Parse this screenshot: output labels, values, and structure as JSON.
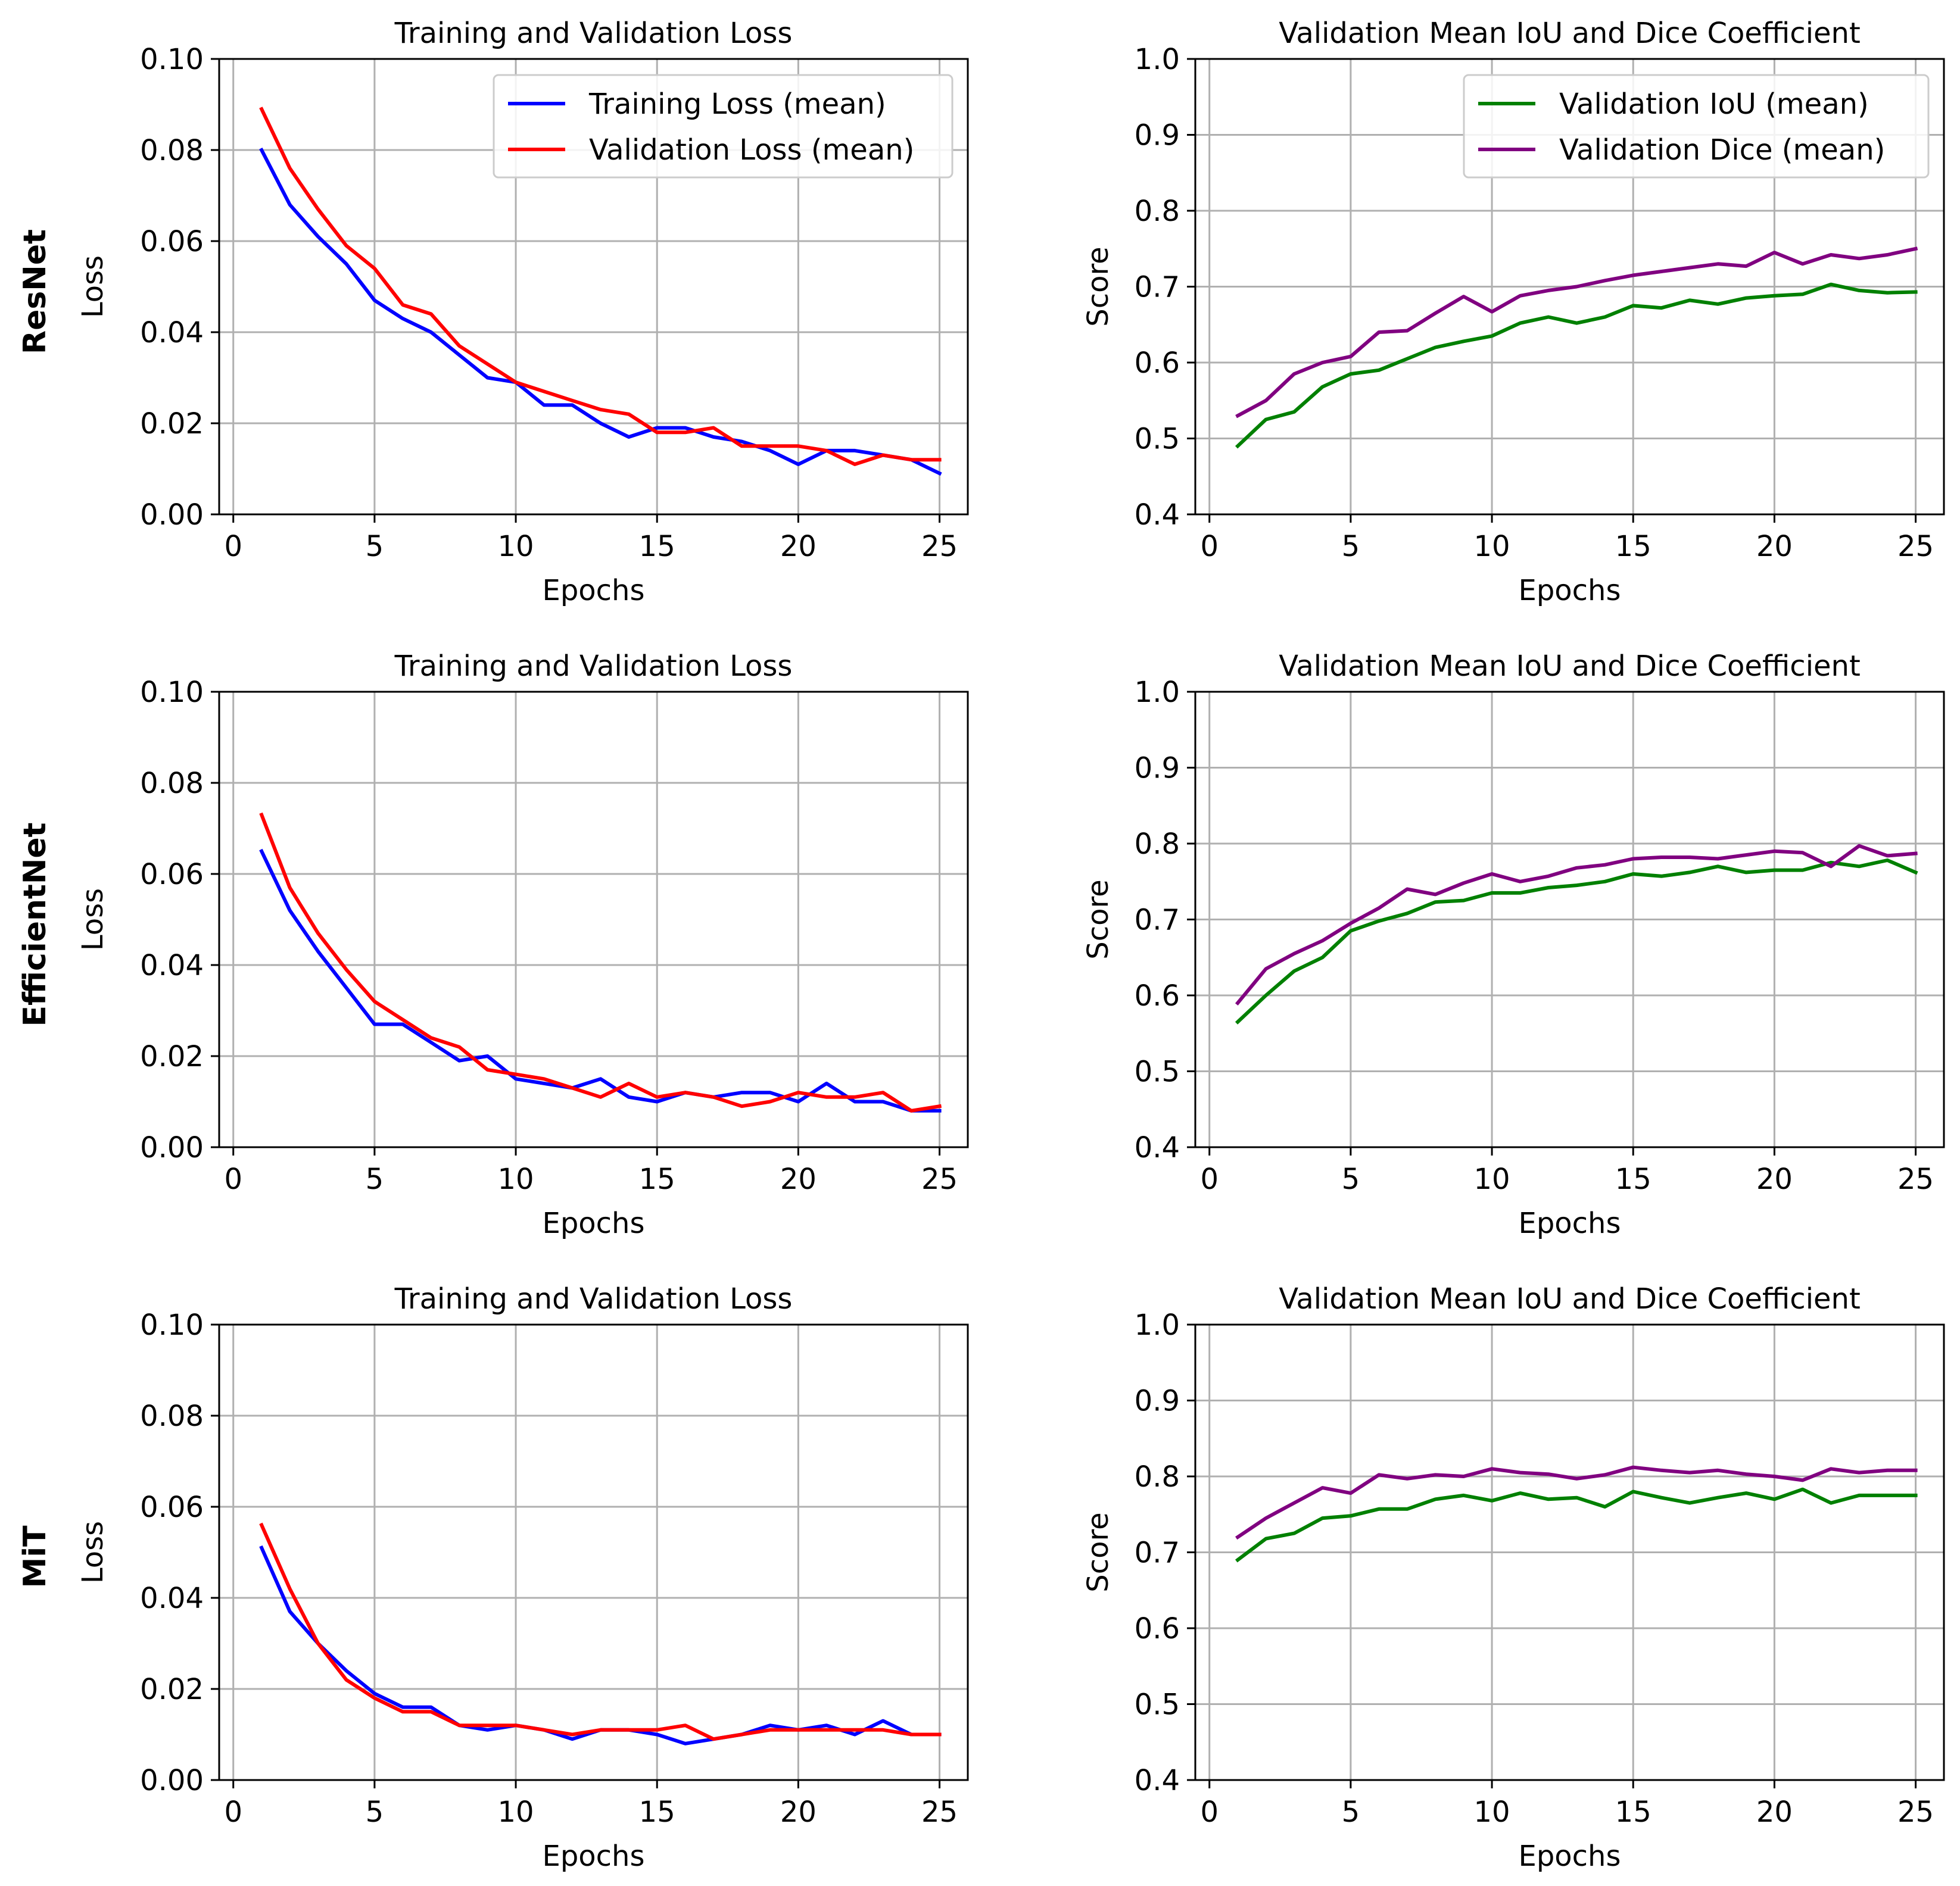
{
  "figure": {
    "row_labels": [
      "ResNet",
      "EfficientNet",
      "MiT"
    ]
  },
  "colors": {
    "train": "#0000ff",
    "val": "#ff0000",
    "iou": "#008000",
    "dice": "#800080",
    "grid": "#b0b0b0"
  },
  "chart_data": [
    {
      "id": "resnet-loss",
      "type": "line",
      "row": "ResNet",
      "title": "Training and Validation Loss",
      "xlabel": "Epochs",
      "ylabel": "Loss",
      "xlim": [
        -0.5,
        26
      ],
      "ylim": [
        0,
        0.1
      ],
      "xticks": [
        0,
        5,
        10,
        15,
        20,
        25
      ],
      "yticks": [
        0.0,
        0.02,
        0.04,
        0.06,
        0.08,
        0.1
      ],
      "ytick_labels": [
        "0.00",
        "0.02",
        "0.04",
        "0.06",
        "0.08",
        "0.10"
      ],
      "legend": "top-right",
      "grid": true,
      "x": [
        1,
        2,
        3,
        4,
        5,
        6,
        7,
        8,
        9,
        10,
        11,
        12,
        13,
        14,
        15,
        16,
        17,
        18,
        19,
        20,
        21,
        22,
        23,
        24,
        25
      ],
      "series": [
        {
          "name": "Training Loss (mean)",
          "color": "train",
          "values": [
            0.08,
            0.068,
            0.061,
            0.055,
            0.047,
            0.043,
            0.04,
            0.035,
            0.03,
            0.029,
            0.024,
            0.024,
            0.02,
            0.017,
            0.019,
            0.019,
            0.017,
            0.016,
            0.014,
            0.011,
            0.014,
            0.014,
            0.013,
            0.012,
            0.009
          ]
        },
        {
          "name": "Validation Loss (mean)",
          "color": "val",
          "values": [
            0.089,
            0.076,
            0.067,
            0.059,
            0.054,
            0.046,
            0.044,
            0.037,
            0.033,
            0.029,
            0.027,
            0.025,
            0.023,
            0.022,
            0.018,
            0.018,
            0.019,
            0.015,
            0.015,
            0.015,
            0.014,
            0.011,
            0.013,
            0.012,
            0.012
          ]
        }
      ]
    },
    {
      "id": "resnet-score",
      "type": "line",
      "row": "ResNet",
      "title": "Validation Mean IoU and Dice Coefficient",
      "xlabel": "Epochs",
      "ylabel": "Score",
      "xlim": [
        -0.5,
        26
      ],
      "ylim": [
        0.4,
        1.0
      ],
      "xticks": [
        0,
        5,
        10,
        15,
        20,
        25
      ],
      "yticks": [
        0.4,
        0.5,
        0.6,
        0.7,
        0.8,
        0.9,
        1.0
      ],
      "ytick_labels": [
        "0.4",
        "0.5",
        "0.6",
        "0.7",
        "0.8",
        "0.9",
        "1.0"
      ],
      "legend": "top-right",
      "grid": true,
      "x": [
        1,
        2,
        3,
        4,
        5,
        6,
        7,
        8,
        9,
        10,
        11,
        12,
        13,
        14,
        15,
        16,
        17,
        18,
        19,
        20,
        21,
        22,
        23,
        24,
        25
      ],
      "series": [
        {
          "name": "Validation IoU (mean)",
          "color": "iou",
          "values": [
            0.49,
            0.525,
            0.535,
            0.568,
            0.585,
            0.59,
            0.605,
            0.62,
            0.628,
            0.635,
            0.652,
            0.66,
            0.652,
            0.66,
            0.675,
            0.672,
            0.682,
            0.677,
            0.685,
            0.688,
            0.69,
            0.703,
            0.695,
            0.692,
            0.693
          ]
        },
        {
          "name": "Validation Dice (mean)",
          "color": "dice",
          "values": [
            0.53,
            0.55,
            0.585,
            0.6,
            0.608,
            0.64,
            0.642,
            0.665,
            0.687,
            0.667,
            0.688,
            0.695,
            0.7,
            0.708,
            0.715,
            0.72,
            0.725,
            0.73,
            0.727,
            0.745,
            0.73,
            0.742,
            0.737,
            0.742,
            0.75
          ]
        }
      ]
    },
    {
      "id": "efficientnet-loss",
      "type": "line",
      "row": "EfficientNet",
      "title": "Training and Validation Loss",
      "xlabel": "Epochs",
      "ylabel": "Loss",
      "xlim": [
        -0.5,
        26
      ],
      "ylim": [
        0,
        0.1
      ],
      "xticks": [
        0,
        5,
        10,
        15,
        20,
        25
      ],
      "yticks": [
        0.0,
        0.02,
        0.04,
        0.06,
        0.08,
        0.1
      ],
      "ytick_labels": [
        "0.00",
        "0.02",
        "0.04",
        "0.06",
        "0.08",
        "0.10"
      ],
      "legend": "none",
      "grid": true,
      "x": [
        1,
        2,
        3,
        4,
        5,
        6,
        7,
        8,
        9,
        10,
        11,
        12,
        13,
        14,
        15,
        16,
        17,
        18,
        19,
        20,
        21,
        22,
        23,
        24,
        25
      ],
      "series": [
        {
          "name": "Training Loss (mean)",
          "color": "train",
          "values": [
            0.065,
            0.052,
            0.043,
            0.035,
            0.027,
            0.027,
            0.023,
            0.019,
            0.02,
            0.015,
            0.014,
            0.013,
            0.015,
            0.011,
            0.01,
            0.012,
            0.011,
            0.012,
            0.012,
            0.01,
            0.014,
            0.01,
            0.01,
            0.008,
            0.008
          ]
        },
        {
          "name": "Validation Loss (mean)",
          "color": "val",
          "values": [
            0.073,
            0.057,
            0.047,
            0.039,
            0.032,
            0.028,
            0.024,
            0.022,
            0.017,
            0.016,
            0.015,
            0.013,
            0.011,
            0.014,
            0.011,
            0.012,
            0.011,
            0.009,
            0.01,
            0.012,
            0.011,
            0.011,
            0.012,
            0.008,
            0.009
          ]
        }
      ]
    },
    {
      "id": "efficientnet-score",
      "type": "line",
      "row": "EfficientNet",
      "title": "Validation Mean IoU and Dice Coefficient",
      "xlabel": "Epochs",
      "ylabel": "Score",
      "xlim": [
        -0.5,
        26
      ],
      "ylim": [
        0.4,
        1.0
      ],
      "xticks": [
        0,
        5,
        10,
        15,
        20,
        25
      ],
      "yticks": [
        0.4,
        0.5,
        0.6,
        0.7,
        0.8,
        0.9,
        1.0
      ],
      "ytick_labels": [
        "0.4",
        "0.5",
        "0.6",
        "0.7",
        "0.8",
        "0.9",
        "1.0"
      ],
      "legend": "none",
      "grid": true,
      "x": [
        1,
        2,
        3,
        4,
        5,
        6,
        7,
        8,
        9,
        10,
        11,
        12,
        13,
        14,
        15,
        16,
        17,
        18,
        19,
        20,
        21,
        22,
        23,
        24,
        25
      ],
      "series": [
        {
          "name": "Validation IoU (mean)",
          "color": "iou",
          "values": [
            0.565,
            0.6,
            0.632,
            0.65,
            0.685,
            0.698,
            0.708,
            0.723,
            0.725,
            0.735,
            0.735,
            0.742,
            0.745,
            0.75,
            0.76,
            0.757,
            0.762,
            0.77,
            0.762,
            0.765,
            0.765,
            0.775,
            0.77,
            0.778,
            0.762
          ]
        },
        {
          "name": "Validation Dice (mean)",
          "color": "dice",
          "values": [
            0.59,
            0.635,
            0.655,
            0.672,
            0.695,
            0.715,
            0.74,
            0.733,
            0.748,
            0.76,
            0.75,
            0.757,
            0.768,
            0.772,
            0.78,
            0.782,
            0.782,
            0.78,
            0.785,
            0.79,
            0.788,
            0.77,
            0.797,
            0.784,
            0.787
          ]
        }
      ]
    },
    {
      "id": "mit-loss",
      "type": "line",
      "row": "MiT",
      "title": "Training and Validation Loss",
      "xlabel": "Epochs",
      "ylabel": "Loss",
      "xlim": [
        -0.5,
        26
      ],
      "ylim": [
        0,
        0.1
      ],
      "xticks": [
        0,
        5,
        10,
        15,
        20,
        25
      ],
      "yticks": [
        0.0,
        0.02,
        0.04,
        0.06,
        0.08,
        0.1
      ],
      "ytick_labels": [
        "0.00",
        "0.02",
        "0.04",
        "0.06",
        "0.08",
        "0.10"
      ],
      "legend": "none",
      "grid": true,
      "x": [
        1,
        2,
        3,
        4,
        5,
        6,
        7,
        8,
        9,
        10,
        11,
        12,
        13,
        14,
        15,
        16,
        17,
        18,
        19,
        20,
        21,
        22,
        23,
        24,
        25
      ],
      "series": [
        {
          "name": "Training Loss (mean)",
          "color": "train",
          "values": [
            0.051,
            0.037,
            0.03,
            0.024,
            0.019,
            0.016,
            0.016,
            0.012,
            0.011,
            0.012,
            0.011,
            0.009,
            0.011,
            0.011,
            0.01,
            0.008,
            0.009,
            0.01,
            0.012,
            0.011,
            0.012,
            0.01,
            0.013,
            0.01,
            0.01
          ]
        },
        {
          "name": "Validation Loss (mean)",
          "color": "val",
          "values": [
            0.056,
            0.042,
            0.03,
            0.022,
            0.018,
            0.015,
            0.015,
            0.012,
            0.012,
            0.012,
            0.011,
            0.01,
            0.011,
            0.011,
            0.011,
            0.012,
            0.009,
            0.01,
            0.011,
            0.011,
            0.011,
            0.011,
            0.011,
            0.01,
            0.01
          ]
        }
      ]
    },
    {
      "id": "mit-score",
      "type": "line",
      "row": "MiT",
      "title": "Validation Mean IoU and Dice Coefficient",
      "xlabel": "Epochs",
      "ylabel": "Score",
      "xlim": [
        -0.5,
        26
      ],
      "ylim": [
        0.4,
        1.0
      ],
      "xticks": [
        0,
        5,
        10,
        15,
        20,
        25
      ],
      "yticks": [
        0.4,
        0.5,
        0.6,
        0.7,
        0.8,
        0.9,
        1.0
      ],
      "ytick_labels": [
        "0.4",
        "0.5",
        "0.6",
        "0.7",
        "0.8",
        "0.9",
        "1.0"
      ],
      "legend": "none",
      "grid": true,
      "x": [
        1,
        2,
        3,
        4,
        5,
        6,
        7,
        8,
        9,
        10,
        11,
        12,
        13,
        14,
        15,
        16,
        17,
        18,
        19,
        20,
        21,
        22,
        23,
        24,
        25
      ],
      "series": [
        {
          "name": "Validation IoU (mean)",
          "color": "iou",
          "values": [
            0.69,
            0.718,
            0.725,
            0.745,
            0.748,
            0.757,
            0.757,
            0.77,
            0.775,
            0.768,
            0.778,
            0.77,
            0.772,
            0.76,
            0.78,
            0.772,
            0.765,
            0.772,
            0.778,
            0.77,
            0.783,
            0.765,
            0.775,
            0.775,
            0.775
          ]
        },
        {
          "name": "Validation Dice (mean)",
          "color": "dice",
          "values": [
            0.72,
            0.745,
            0.765,
            0.785,
            0.778,
            0.802,
            0.797,
            0.802,
            0.8,
            0.81,
            0.805,
            0.803,
            0.797,
            0.802,
            0.812,
            0.808,
            0.805,
            0.808,
            0.803,
            0.8,
            0.795,
            0.81,
            0.805,
            0.808,
            0.808
          ]
        }
      ]
    }
  ]
}
